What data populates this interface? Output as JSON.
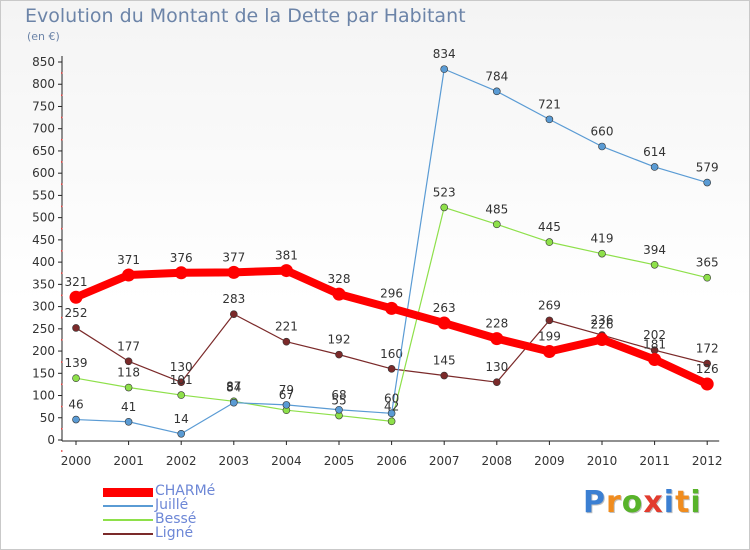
{
  "header": {
    "title": "Evolution du Montant de la Dette par Habitant",
    "unit": "(en €)"
  },
  "logo": {
    "text": "Proxiti",
    "letters": [
      {
        "ch": "P",
        "color": "#3b7fd2"
      },
      {
        "ch": "r",
        "color": "#f08c1e"
      },
      {
        "ch": "o",
        "color": "#58b32a"
      },
      {
        "ch": "x",
        "color": "#e23b2e"
      },
      {
        "ch": "i",
        "color": "#3b7fd2"
      },
      {
        "ch": "t",
        "color": "#f08c1e"
      },
      {
        "ch": "i",
        "color": "#58b32a"
      }
    ]
  },
  "chart_data": {
    "type": "line",
    "title": "Evolution du Montant de la Dette par Habitant",
    "ylabel": "(en €)",
    "xlabel": "",
    "x": [
      "2000",
      "2001",
      "2002",
      "2003",
      "2004",
      "2005",
      "2006",
      "2007",
      "2008",
      "2009",
      "2010",
      "2011",
      "2012"
    ],
    "yticks": [
      0,
      50,
      100,
      150,
      200,
      250,
      300,
      350,
      400,
      450,
      500,
      550,
      600,
      650,
      700,
      750,
      800,
      850
    ],
    "ylim": [
      0,
      850
    ],
    "grid": false,
    "legend_position": "bottom-left",
    "series": [
      {
        "name": "CHARMé",
        "color": "#ff0000",
        "emphasis": true,
        "values": [
          321,
          371,
          376,
          377,
          381,
          328,
          296,
          263,
          228,
          199,
          226,
          181,
          126
        ]
      },
      {
        "name": "Juillé",
        "color": "#5a9bd4",
        "values": [
          46,
          41,
          14,
          84,
          79,
          68,
          60,
          834,
          784,
          721,
          660,
          614,
          579
        ]
      },
      {
        "name": "Bessé",
        "color": "#8ee04a",
        "values": [
          139,
          118,
          101,
          87,
          67,
          55,
          42,
          523,
          485,
          445,
          419,
          394,
          365
        ]
      },
      {
        "name": "Ligné",
        "color": "#7b2a2a",
        "values": [
          252,
          177,
          130,
          283,
          221,
          192,
          160,
          145,
          130,
          269,
          236,
          202,
          172
        ]
      }
    ]
  }
}
